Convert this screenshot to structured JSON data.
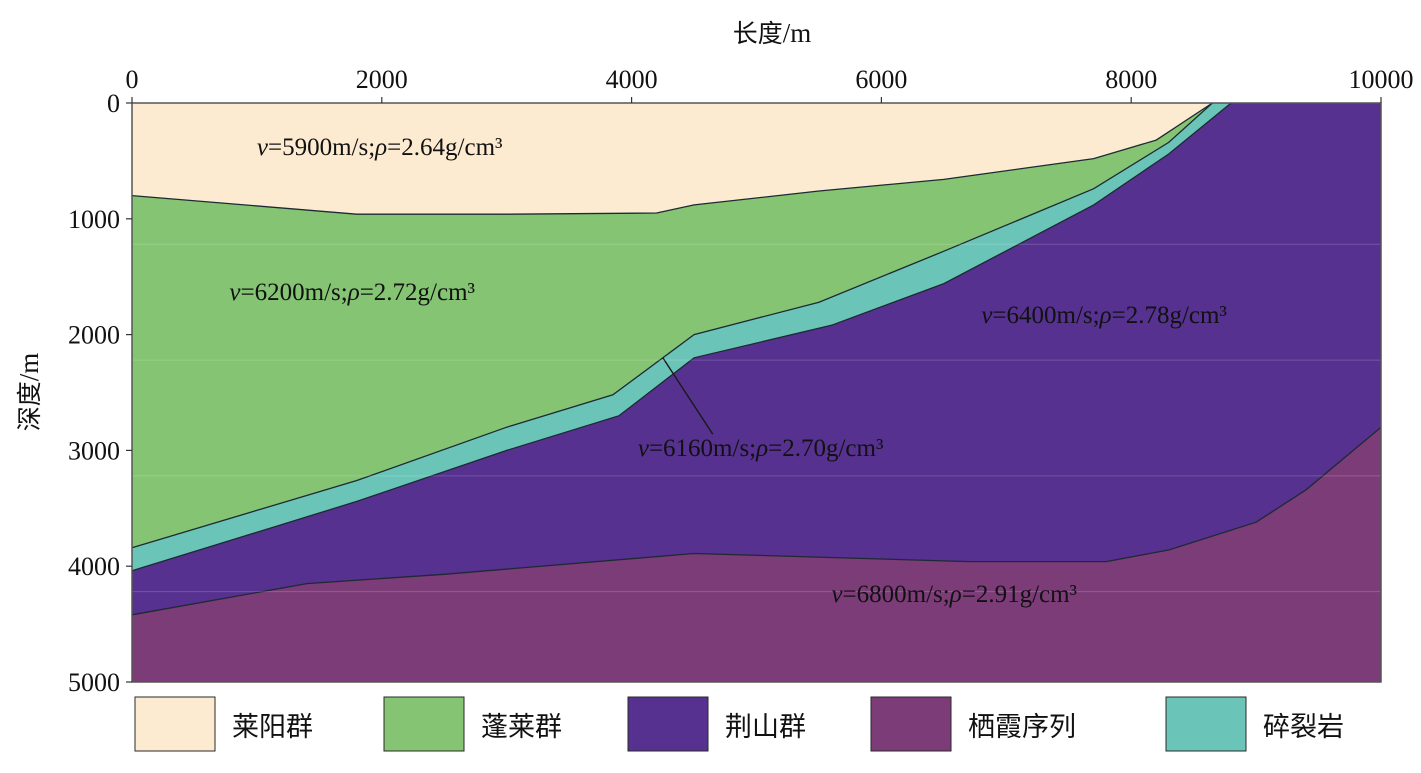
{
  "axes": {
    "x_title": "长度",
    "x_unit": "/m",
    "y_title": "深度",
    "y_unit": "/m",
    "x_ticks": [
      "0",
      "2000",
      "4000",
      "6000",
      "8000",
      "10000"
    ],
    "y_ticks": [
      "0",
      "1000",
      "2000",
      "3000",
      "4000",
      "5000"
    ],
    "x_range": [
      0,
      10000
    ],
    "y_range": [
      0,
      5000
    ]
  },
  "colors": {
    "laiyang": "#fcebd0",
    "penglai": "#84c473",
    "jingshan": "#56318f",
    "qixia": "#7c3c78",
    "cataclasite": "#6ac4b7"
  },
  "layers": [
    {
      "key": "laiyang",
      "name": "莱阳群",
      "label": {
        "v": "5900",
        "rho": "2.64"
      },
      "label_pos": [
        1000,
        450
      ],
      "top": [
        [
          0,
          0
        ],
        [
          10000,
          0
        ]
      ],
      "base": [
        [
          0,
          800
        ],
        [
          1800,
          960
        ],
        [
          3000,
          960
        ],
        [
          4200,
          950
        ],
        [
          4500,
          880
        ],
        [
          5500,
          760
        ],
        [
          6500,
          660
        ],
        [
          7700,
          480
        ],
        [
          8200,
          320
        ],
        [
          8650,
          0
        ]
      ]
    },
    {
      "key": "penglai",
      "name": "蓬莱群",
      "label": {
        "v": "6200",
        "rho": "2.72"
      },
      "label_pos": [
        780,
        1700
      ],
      "top_ref": "laiyang.base",
      "base": [
        [
          0,
          3840
        ],
        [
          1800,
          3260
        ],
        [
          3000,
          2800
        ],
        [
          3850,
          2520
        ],
        [
          4500,
          2000
        ],
        [
          5500,
          1720
        ],
        [
          6500,
          1280
        ],
        [
          7700,
          740
        ],
        [
          8300,
          340
        ],
        [
          8650,
          0
        ]
      ]
    },
    {
      "key": "cataclasite",
      "name": "碎裂岩",
      "label": {
        "v": "6160",
        "rho": "2.70"
      },
      "label_pos": [
        4050,
        3050
      ],
      "top_ref": "penglai.base",
      "base": [
        [
          0,
          4040
        ],
        [
          1800,
          3440
        ],
        [
          3000,
          3000
        ],
        [
          3900,
          2700
        ],
        [
          4500,
          2200
        ],
        [
          5600,
          1920
        ],
        [
          6500,
          1560
        ],
        [
          7700,
          880
        ],
        [
          8300,
          440
        ],
        [
          8800,
          0
        ]
      ]
    },
    {
      "key": "jingshan",
      "name": "荆山群",
      "label": {
        "v": "6400",
        "rho": "2.78"
      },
      "label_pos": [
        6800,
        1900
      ],
      "top_ref": "cataclasite.base",
      "base": [
        [
          0,
          4420
        ],
        [
          1400,
          4150
        ],
        [
          2500,
          4070
        ],
        [
          4500,
          3890
        ],
        [
          6700,
          3960
        ],
        [
          7800,
          3960
        ],
        [
          8300,
          3860
        ],
        [
          9000,
          3620
        ],
        [
          9400,
          3340
        ],
        [
          10000,
          2800
        ]
      ]
    },
    {
      "key": "qixia",
      "name": "栖霞序列",
      "label": {
        "v": "6800",
        "rho": "2.91"
      },
      "label_pos": [
        5600,
        4310
      ],
      "top_ref": "jingshan.base",
      "base": [
        [
          0,
          5000
        ],
        [
          10000,
          5000
        ]
      ]
    }
  ],
  "pointer_line": [
    [
      4250,
      2200
    ],
    [
      4650,
      2860
    ]
  ],
  "label_template": {
    "v_symbol": "v",
    "rho_symbol": "ρ",
    "eq": "=",
    "v_unit": "m/s;",
    "rho_unit": "g/cm³"
  },
  "legend": [
    {
      "key": "laiyang",
      "label": "莱阳群"
    },
    {
      "key": "penglai",
      "label": "蓬莱群"
    },
    {
      "key": "jingshan",
      "label": "荆山群"
    },
    {
      "key": "qixia",
      "label": "栖霞序列"
    },
    {
      "key": "cataclasite",
      "label": "碎裂岩"
    }
  ]
}
